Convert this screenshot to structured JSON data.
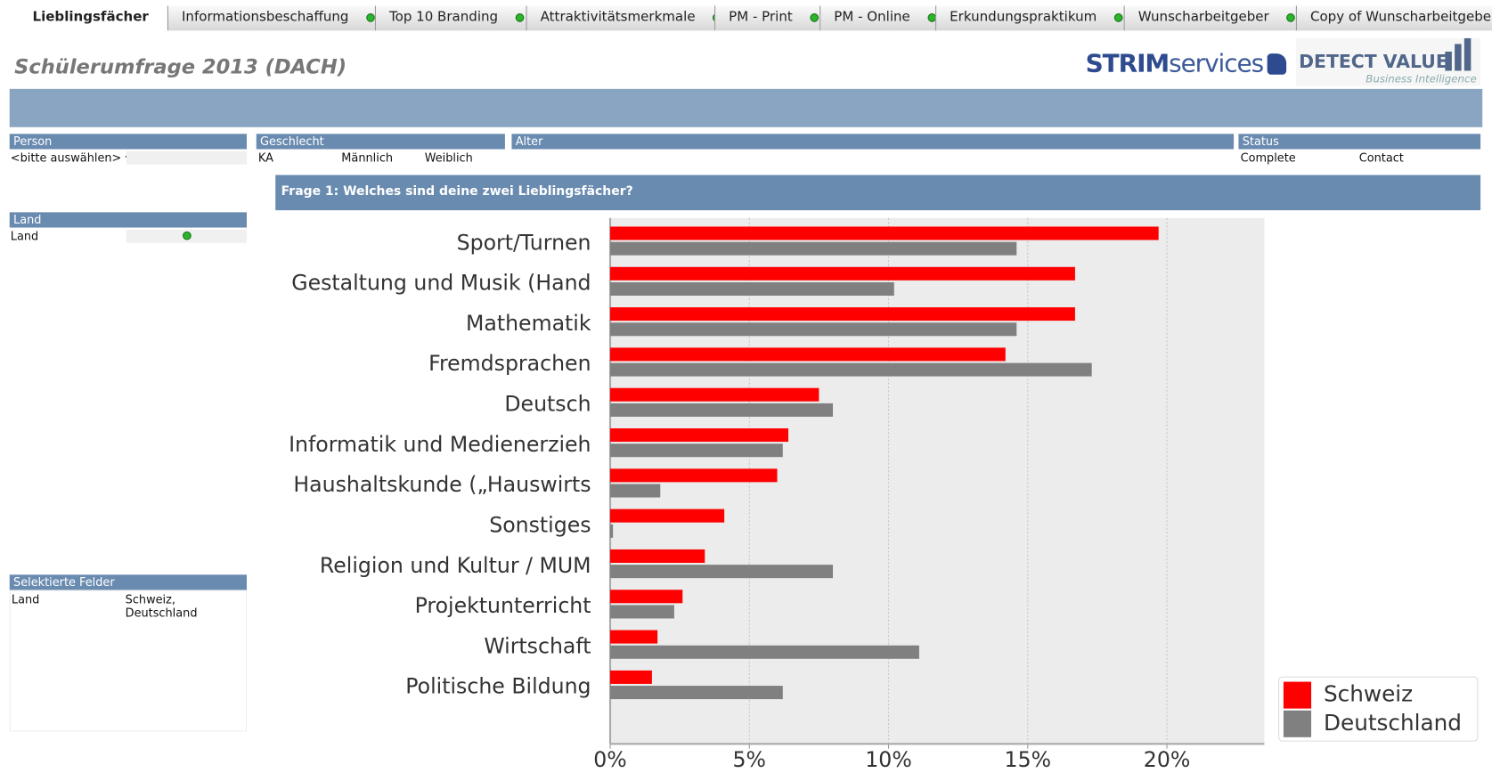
{
  "tabs": [
    "Lieblingsfächer",
    "Informationsbeschaffung",
    "Top 10 Branding",
    "Attraktivitätsmerkmale",
    "PM - Print",
    "PM - Online",
    "Erkundungspraktikum",
    "Wunscharbeitgeber",
    "Copy of Wunscharbeitgeber"
  ],
  "header": {
    "title": "Schülerumfrage 2013 (DACH)",
    "logo1_a": "STRIM",
    "logo1_b": "services",
    "logo2": "DETECT VALUE",
    "logo2_sub": "Business Intelligence"
  },
  "filters": {
    "person": {
      "title": "Person",
      "value": "<bitte auswählen>"
    },
    "geschlecht": {
      "title": "Geschlecht",
      "options": [
        "KA",
        "Männlich",
        "Weiblich"
      ]
    },
    "alter": {
      "title": "Alter"
    },
    "status": {
      "title": "Status",
      "options": [
        "Complete",
        "Contact"
      ]
    },
    "land": {
      "title": "Land",
      "value": "Land"
    },
    "selected": {
      "title": "Selektierte Felder",
      "field": "Land",
      "value": "Schweiz, Deutschland"
    }
  },
  "chart_data": {
    "type": "hbar",
    "title": "Frage 1: Welches sind deine zwei Lieblingsfächer?",
    "categories": [
      "Sport/Turnen",
      "Gestaltung und Musik (Hand",
      "Mathematik",
      "Fremdsprachen",
      "Deutsch",
      "Informatik und Medienerzieh",
      "Haushaltskunde („Hauswirts",
      "Sonstiges",
      "Religion und Kultur / MUM",
      "Projektunterricht",
      "Wirtschaft",
      "Politische Bildung"
    ],
    "series": [
      {
        "name": "Schweiz",
        "color": "#ff0000",
        "values": [
          19.7,
          16.7,
          16.7,
          14.2,
          7.5,
          6.4,
          6.0,
          4.1,
          3.4,
          2.6,
          1.7,
          1.5
        ]
      },
      {
        "name": "Deutschland",
        "color": "#808080",
        "values": [
          14.6,
          10.2,
          14.6,
          17.3,
          8.0,
          6.2,
          1.8,
          0.1,
          8.0,
          2.3,
          11.1,
          6.2
        ]
      }
    ],
    "xlim": [
      0,
      23.5
    ],
    "xticks": [
      {
        "value": 0,
        "label": "0%"
      },
      {
        "value": 5,
        "label": "5%"
      },
      {
        "value": 10,
        "label": "10%"
      },
      {
        "value": 15,
        "label": "15%"
      },
      {
        "value": 20,
        "label": "20%"
      }
    ],
    "grid": true,
    "legend": "bottom-right"
  }
}
